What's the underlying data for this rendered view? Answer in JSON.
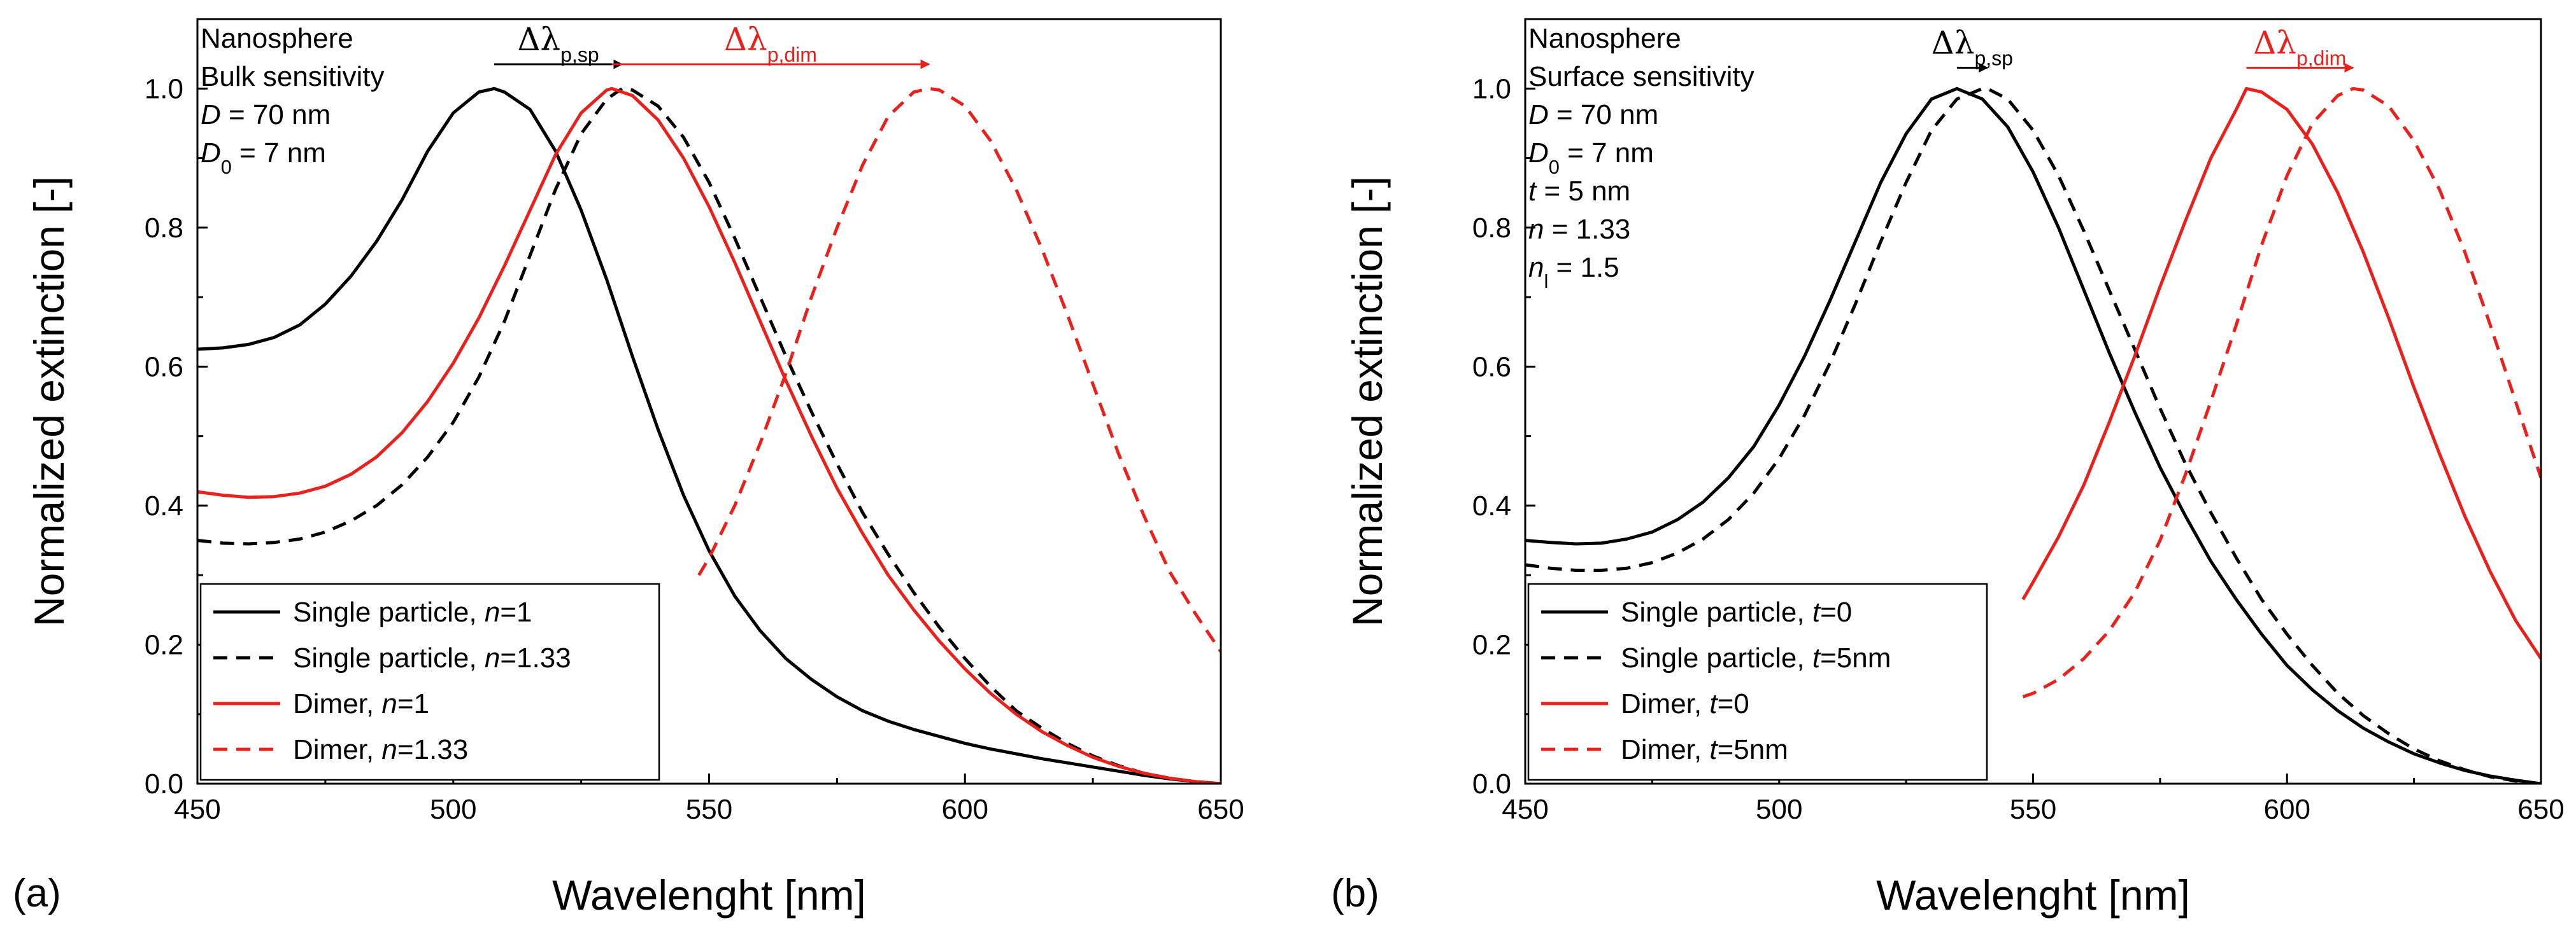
{
  "chart_data": [
    {
      "panel_label": "(a)",
      "type": "line",
      "xlabel": "Wavelenght [nm]",
      "ylabel": "Normalized extinction [-]",
      "xlim": [
        450,
        650
      ],
      "ylim": [
        0,
        1.1
      ],
      "xticks": [
        450,
        500,
        550,
        600,
        650
      ],
      "xtick_labels": [
        "450",
        "500",
        "550",
        "600",
        "650"
      ],
      "yticks": [
        0,
        0.2,
        0.4,
        0.6,
        0.8,
        1.0
      ],
      "ytick_labels": [
        "0.0",
        "0.2",
        "0.4",
        "0.6",
        "0.8",
        "1.0"
      ],
      "info_lines": [
        {
          "parts": [
            {
              "text": "Nanosphere"
            }
          ]
        },
        {
          "parts": [
            {
              "text": "Bulk sensitivity"
            }
          ]
        },
        {
          "parts": [
            {
              "text": "D",
              "style": "italic"
            },
            {
              "text": " = 70 nm"
            }
          ]
        },
        {
          "parts": [
            {
              "text": "D",
              "style": "italic"
            },
            {
              "text": "0",
              "style": "sub"
            },
            {
              "text": " = 7 nm"
            }
          ]
        }
      ],
      "annotations": [
        {
          "symbol": "Δλ",
          "subscript": "p,sp",
          "color": "#000000",
          "from_x": 508,
          "to_x": 533,
          "y": 1.035
        },
        {
          "symbol": "Δλ",
          "subscript": "p,dim",
          "color": "#e8211d",
          "from_x": 531,
          "to_x": 593,
          "y": 1.035
        }
      ],
      "legend": {
        "position": "bottom-left",
        "entries": [
          {
            "parts": [
              {
                "text": "Single particle, "
              },
              {
                "text": "n",
                "style": "italic"
              },
              {
                "text": "=1"
              }
            ]
          },
          {
            "parts": [
              {
                "text": "Single particle, "
              },
              {
                "text": "n",
                "style": "italic"
              },
              {
                "text": "=1.33"
              }
            ]
          },
          {
            "parts": [
              {
                "text": "Dimer, "
              },
              {
                "text": "n",
                "style": "italic"
              },
              {
                "text": "=1"
              }
            ]
          },
          {
            "parts": [
              {
                "text": "Dimer, "
              },
              {
                "text": "n",
                "style": "italic"
              },
              {
                "text": "=1.33"
              }
            ]
          }
        ]
      },
      "series": [
        {
          "name": "Single particle, n=1",
          "color": "#000000",
          "dash": "solid",
          "x": [
            450,
            455,
            460,
            465,
            470,
            475,
            480,
            485,
            490,
            495,
            500,
            505,
            508,
            510,
            515,
            520,
            525,
            530,
            535,
            540,
            545,
            550,
            555,
            560,
            565,
            570,
            575,
            580,
            585,
            590,
            595,
            600,
            605,
            610,
            615,
            620,
            625,
            630,
            635,
            640,
            645,
            650
          ],
          "y": [
            0.625,
            0.627,
            0.632,
            0.642,
            0.66,
            0.69,
            0.73,
            0.78,
            0.84,
            0.91,
            0.965,
            0.995,
            1.0,
            0.995,
            0.97,
            0.91,
            0.825,
            0.725,
            0.615,
            0.51,
            0.415,
            0.335,
            0.27,
            0.22,
            0.18,
            0.15,
            0.125,
            0.105,
            0.09,
            0.078,
            0.068,
            0.058,
            0.05,
            0.043,
            0.036,
            0.03,
            0.024,
            0.018,
            0.012,
            0.007,
            0.003,
            0.0
          ]
        },
        {
          "name": "Single particle, n=1.33",
          "color": "#000000",
          "dash": "dashed",
          "x": [
            450,
            455,
            460,
            465,
            470,
            475,
            480,
            485,
            490,
            495,
            500,
            505,
            510,
            515,
            520,
            525,
            530,
            533,
            535,
            540,
            545,
            550,
            555,
            560,
            565,
            570,
            575,
            580,
            585,
            590,
            595,
            600,
            605,
            610,
            615,
            620,
            625,
            630,
            635,
            640,
            645,
            650
          ],
          "y": [
            0.35,
            0.346,
            0.345,
            0.347,
            0.352,
            0.362,
            0.378,
            0.4,
            0.43,
            0.47,
            0.52,
            0.585,
            0.665,
            0.76,
            0.855,
            0.935,
            0.985,
            1.0,
            0.998,
            0.975,
            0.93,
            0.865,
            0.785,
            0.7,
            0.615,
            0.535,
            0.46,
            0.39,
            0.33,
            0.275,
            0.225,
            0.18,
            0.14,
            0.105,
            0.08,
            0.058,
            0.04,
            0.026,
            0.015,
            0.008,
            0.003,
            0.0
          ]
        },
        {
          "name": "Dimer, n=1",
          "color": "#e8211d",
          "dash": "solid",
          "x": [
            450,
            455,
            460,
            465,
            470,
            475,
            480,
            485,
            490,
            495,
            500,
            505,
            510,
            515,
            520,
            525,
            530,
            531,
            535,
            540,
            545,
            550,
            555,
            560,
            565,
            570,
            575,
            580,
            585,
            590,
            595,
            600,
            605,
            610,
            615,
            620,
            625,
            630,
            635,
            640,
            645,
            650
          ],
          "y": [
            0.42,
            0.415,
            0.412,
            0.413,
            0.418,
            0.428,
            0.445,
            0.47,
            0.505,
            0.55,
            0.605,
            0.67,
            0.745,
            0.825,
            0.905,
            0.965,
            0.998,
            1.0,
            0.99,
            0.955,
            0.9,
            0.83,
            0.75,
            0.665,
            0.58,
            0.5,
            0.425,
            0.36,
            0.3,
            0.25,
            0.205,
            0.165,
            0.13,
            0.1,
            0.075,
            0.055,
            0.038,
            0.025,
            0.015,
            0.008,
            0.003,
            0.0
          ]
        },
        {
          "name": "Dimer, n=1.33",
          "color": "#e8211d",
          "dash": "dashed",
          "x": [
            548,
            550,
            555,
            560,
            565,
            570,
            575,
            580,
            585,
            590,
            593,
            595,
            600,
            605,
            610,
            615,
            620,
            625,
            630,
            635,
            640,
            645,
            650
          ],
          "y": [
            0.3,
            0.325,
            0.4,
            0.49,
            0.59,
            0.7,
            0.8,
            0.89,
            0.96,
            0.995,
            1.0,
            0.998,
            0.975,
            0.925,
            0.855,
            0.77,
            0.675,
            0.575,
            0.475,
            0.385,
            0.305,
            0.245,
            0.19
          ]
        }
      ]
    },
    {
      "panel_label": "(b)",
      "type": "line",
      "xlabel": "Wavelenght [nm]",
      "ylabel": "Normalized extinction [-]",
      "xlim": [
        450,
        650
      ],
      "ylim": [
        0,
        1.1
      ],
      "xticks": [
        450,
        500,
        550,
        600,
        650
      ],
      "xtick_labels": [
        "450",
        "500",
        "550",
        "600",
        "650"
      ],
      "yticks": [
        0,
        0.2,
        0.4,
        0.6,
        0.8,
        1.0
      ],
      "ytick_labels": [
        "0.0",
        "0.2",
        "0.4",
        "0.6",
        "0.8",
        "1.0"
      ],
      "info_lines": [
        {
          "parts": [
            {
              "text": "Nanosphere"
            }
          ]
        },
        {
          "parts": [
            {
              "text": "Surface sensitivity"
            }
          ]
        },
        {
          "parts": [
            {
              "text": "D",
              "style": "italic"
            },
            {
              "text": " = 70 nm"
            }
          ]
        },
        {
          "parts": [
            {
              "text": "D",
              "style": "italic"
            },
            {
              "text": "0",
              "style": "sub"
            },
            {
              "text": " = 7 nm"
            }
          ]
        },
        {
          "parts": [
            {
              "text": "t",
              "style": "italic"
            },
            {
              "text": " = 5 nm"
            }
          ]
        },
        {
          "parts": [
            {
              "text": "n",
              "style": "italic"
            },
            {
              "text": " = 1.33"
            }
          ]
        },
        {
          "parts": [
            {
              "text": "n",
              "style": "italic"
            },
            {
              "text": "l",
              "style": "sub"
            },
            {
              "text": " = 1.5"
            }
          ]
        }
      ],
      "annotations": [
        {
          "symbol": "Δλ",
          "subscript": "p,sp",
          "color": "#000000",
          "from_x": 535,
          "to_x": 541,
          "y": 1.03
        },
        {
          "symbol": "Δλ",
          "subscript": "p,dim",
          "color": "#e8211d",
          "from_x": 592,
          "to_x": 613,
          "y": 1.03
        }
      ],
      "legend": {
        "position": "bottom-left",
        "entries": [
          {
            "parts": [
              {
                "text": "Single particle, "
              },
              {
                "text": "t",
                "style": "italic"
              },
              {
                "text": "=0"
              }
            ]
          },
          {
            "parts": [
              {
                "text": "Single particle, "
              },
              {
                "text": "t",
                "style": "italic"
              },
              {
                "text": "=5nm"
              }
            ]
          },
          {
            "parts": [
              {
                "text": "Dimer, "
              },
              {
                "text": "t",
                "style": "italic"
              },
              {
                "text": "=0"
              }
            ]
          },
          {
            "parts": [
              {
                "text": "Dimer, "
              },
              {
                "text": "t",
                "style": "italic"
              },
              {
                "text": "=5nm"
              }
            ]
          }
        ]
      },
      "series": [
        {
          "name": "Single particle, t=0",
          "color": "#000000",
          "dash": "solid",
          "x": [
            450,
            455,
            460,
            465,
            470,
            475,
            480,
            485,
            490,
            495,
            500,
            505,
            510,
            515,
            520,
            525,
            530,
            535,
            540,
            545,
            550,
            555,
            560,
            565,
            570,
            575,
            580,
            585,
            590,
            595,
            600,
            605,
            610,
            615,
            620,
            625,
            630,
            635,
            640,
            645,
            650
          ],
          "y": [
            0.35,
            0.347,
            0.345,
            0.346,
            0.352,
            0.362,
            0.38,
            0.405,
            0.44,
            0.485,
            0.545,
            0.615,
            0.695,
            0.78,
            0.865,
            0.935,
            0.985,
            1.0,
            0.985,
            0.945,
            0.88,
            0.8,
            0.71,
            0.62,
            0.535,
            0.455,
            0.385,
            0.32,
            0.265,
            0.215,
            0.17,
            0.135,
            0.105,
            0.08,
            0.06,
            0.043,
            0.03,
            0.019,
            0.011,
            0.005,
            0.0
          ]
        },
        {
          "name": "Single particle, t=5nm",
          "color": "#000000",
          "dash": "dashed",
          "x": [
            450,
            455,
            460,
            465,
            470,
            475,
            480,
            485,
            490,
            495,
            500,
            505,
            510,
            515,
            520,
            525,
            530,
            535,
            540,
            541,
            545,
            550,
            555,
            560,
            565,
            570,
            575,
            580,
            585,
            590,
            595,
            600,
            605,
            610,
            615,
            620,
            625,
            630,
            635,
            640,
            645,
            650
          ],
          "y": [
            0.315,
            0.31,
            0.307,
            0.307,
            0.31,
            0.318,
            0.332,
            0.352,
            0.38,
            0.418,
            0.468,
            0.53,
            0.605,
            0.69,
            0.78,
            0.865,
            0.94,
            0.985,
            1.0,
            1.0,
            0.985,
            0.94,
            0.875,
            0.795,
            0.71,
            0.625,
            0.54,
            0.46,
            0.39,
            0.325,
            0.265,
            0.215,
            0.17,
            0.13,
            0.098,
            0.072,
            0.05,
            0.033,
            0.02,
            0.01,
            0.004,
            0.0
          ]
        },
        {
          "name": "Dimer, t=0",
          "color": "#e8211d",
          "dash": "solid",
          "x": [
            548,
            550,
            555,
            560,
            565,
            570,
            575,
            580,
            585,
            590,
            592,
            595,
            600,
            605,
            610,
            615,
            620,
            625,
            630,
            635,
            640,
            645,
            650
          ],
          "y": [
            0.265,
            0.29,
            0.355,
            0.43,
            0.52,
            0.615,
            0.715,
            0.81,
            0.9,
            0.97,
            1.0,
            0.995,
            0.97,
            0.92,
            0.85,
            0.765,
            0.67,
            0.57,
            0.475,
            0.385,
            0.305,
            0.235,
            0.18
          ]
        },
        {
          "name": "Dimer, t=5nm",
          "color": "#e8211d",
          "dash": "dashed",
          "x": [
            548,
            550,
            555,
            560,
            565,
            570,
            575,
            580,
            585,
            590,
            595,
            600,
            605,
            610,
            613,
            615,
            620,
            625,
            630,
            635,
            640,
            645,
            650
          ],
          "y": [
            0.125,
            0.13,
            0.15,
            0.18,
            0.22,
            0.275,
            0.35,
            0.445,
            0.55,
            0.66,
            0.775,
            0.875,
            0.95,
            0.99,
            1.0,
            0.998,
            0.975,
            0.925,
            0.855,
            0.765,
            0.66,
            0.55,
            0.44
          ]
        }
      ]
    }
  ]
}
